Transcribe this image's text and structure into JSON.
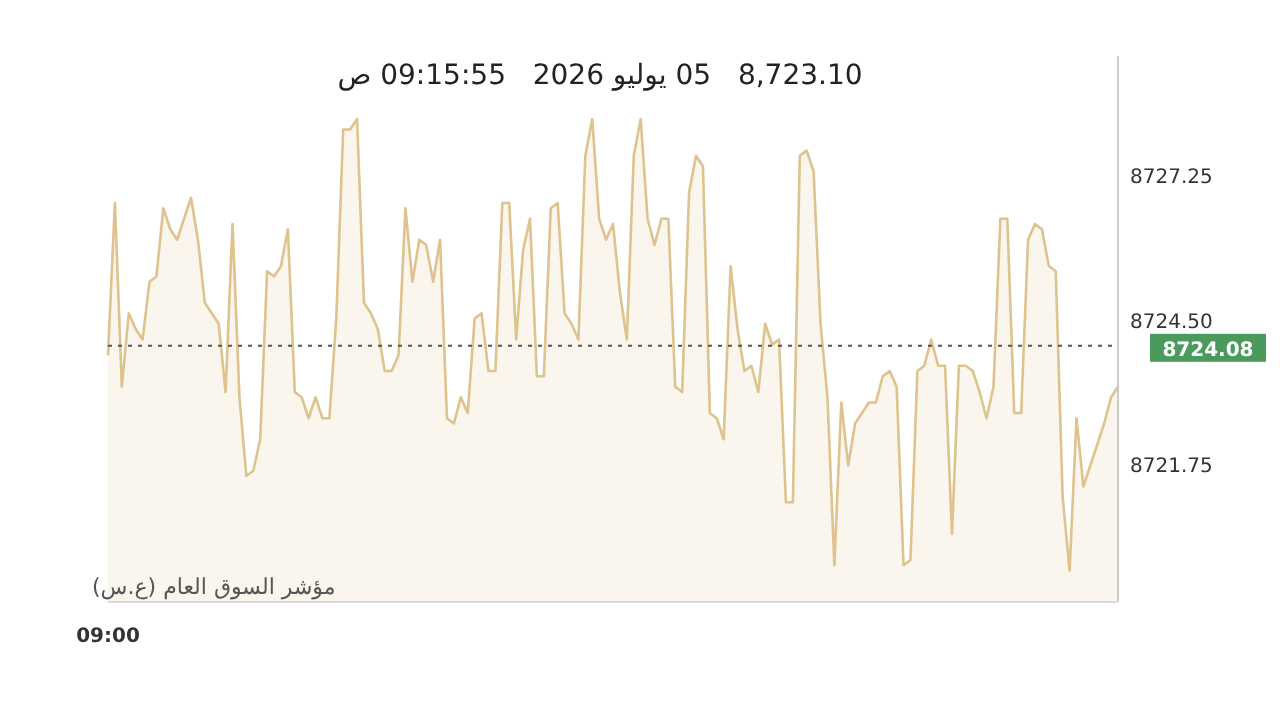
{
  "chart_data": {
    "type": "area",
    "title": "8,723.10   05 يوليو 2026   09:15:55 ص",
    "categories": [
      "09:00",
      null,
      null,
      null,
      null,
      null,
      null,
      null,
      null,
      null,
      null,
      null,
      null,
      null,
      null,
      null,
      null,
      null,
      null,
      null,
      null,
      null,
      null,
      null,
      null,
      null,
      null,
      null,
      null,
      null,
      null,
      null,
      null,
      null,
      null,
      null,
      null,
      null,
      null,
      null,
      null,
      null,
      null,
      null,
      null,
      null,
      null,
      null,
      null,
      null,
      null,
      null,
      null,
      null,
      null,
      null,
      null,
      null,
      null,
      null,
      null,
      null,
      null,
      null,
      null,
      null,
      null,
      null,
      null,
      null,
      null,
      null,
      null,
      null,
      null,
      null,
      null,
      null,
      null,
      null,
      null,
      null,
      null,
      null,
      null,
      null,
      null,
      null,
      null,
      null,
      null,
      null,
      null,
      null,
      null,
      null,
      null,
      null,
      null,
      null,
      null,
      null,
      null,
      null,
      null,
      null,
      null,
      null,
      null,
      null,
      null,
      null,
      null,
      null,
      null,
      null,
      null,
      null,
      null,
      null,
      null,
      null,
      null,
      null,
      null,
      null,
      null,
      null,
      null,
      null,
      null,
      null,
      null,
      null,
      null,
      null,
      null,
      null,
      null,
      null,
      null,
      null,
      null,
      null,
      null,
      null,
      null
    ],
    "series": [
      {
        "color": "#dfc38e",
        "values": [
          8723.9,
          8726.8,
          8723.3,
          8724.7,
          8724.4,
          8724.2,
          8725.3,
          8725.4,
          8726.7,
          8726.3,
          8726.1,
          8726.5,
          8726.9,
          8726.1,
          8724.9,
          8724.7,
          8724.5,
          8723.2,
          8726.4,
          8723.1,
          8721.6,
          8721.7,
          8722.3,
          8725.5,
          8725.4,
          8725.6,
          8726.3,
          8723.2,
          8723.1,
          8722.7,
          8723.1,
          8722.7,
          8722.7,
          8724.6,
          8728.2,
          8728.2,
          8728.4,
          8724.9,
          8724.7,
          8724.4,
          8723.6,
          8723.6,
          8723.9,
          8726.7,
          8725.3,
          8726.1,
          8726.0,
          8725.3,
          8726.1,
          8722.7,
          8722.6,
          8723.1,
          8722.8,
          8724.6,
          8724.7,
          8723.6,
          8723.6,
          8726.8,
          8726.8,
          8724.2,
          8725.9,
          8726.5,
          8723.5,
          8723.5,
          8726.7,
          8726.8,
          8724.7,
          8724.5,
          8724.2,
          8727.7,
          8728.4,
          8726.5,
          8726.1,
          8726.4,
          8725.1,
          8724.2,
          8727.7,
          8728.4,
          8726.5,
          8726.0,
          8726.5,
          8726.5,
          8723.3,
          8723.2,
          8727.0,
          8727.7,
          8727.5,
          8722.8,
          8722.7,
          8722.3,
          8725.6,
          8724.4,
          8723.6,
          8723.7,
          8723.2,
          8724.5,
          8724.1,
          8724.2,
          8721.1,
          8721.1,
          8727.7,
          8727.8,
          8727.4,
          8724.5,
          8723.1,
          8719.9,
          8723.0,
          8721.8,
          8722.6,
          8722.8,
          8723.0,
          8723.0,
          8723.5,
          8723.6,
          8723.3,
          8719.9,
          8720.0,
          8723.6,
          8723.7,
          8724.2,
          8723.7,
          8723.7,
          8720.5,
          8723.7,
          8723.7,
          8723.6,
          8723.2,
          8722.7,
          8723.3,
          8726.5,
          8726.5,
          8722.8,
          8722.8,
          8726.1,
          8726.4,
          8726.3,
          8725.6,
          8725.5,
          8721.2,
          8719.8,
          8722.7,
          8721.4,
          8721.8,
          8722.2,
          8722.6,
          8723.1,
          8723.3
        ]
      }
    ],
    "ylim": [
      8719.2,
      8729.6
    ],
    "yticks": [
      {
        "value": 8727.25,
        "label": "8727.25"
      },
      {
        "value": 8724.5,
        "label": "8724.50"
      },
      {
        "value": 8721.75,
        "label": "8721.75"
      }
    ],
    "ref_lines": [
      {
        "axis": "y",
        "value": 8724.08,
        "label": "8724.08",
        "color": "#555555",
        "line_style": "dotted"
      }
    ],
    "annotations": [
      "مؤشر السوق العام (ع.س)"
    ]
  }
}
